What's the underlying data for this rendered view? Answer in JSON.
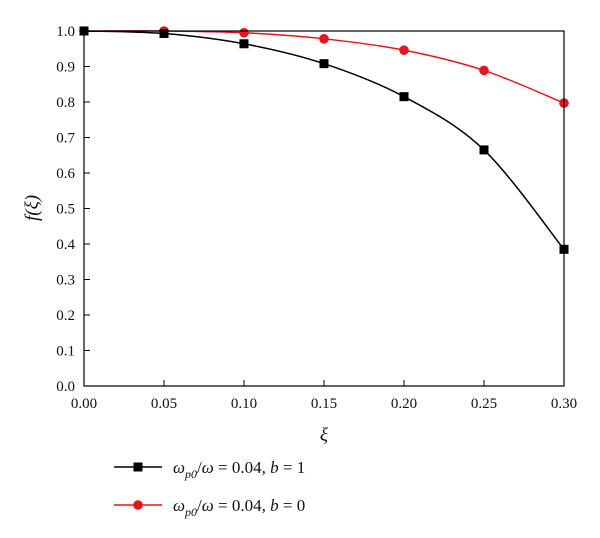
{
  "chart_data": {
    "type": "line",
    "xlabel": "ξ",
    "ylabel": "f(ξ)",
    "xlim": [
      0.0,
      0.3
    ],
    "ylim": [
      0.0,
      1.0
    ],
    "x_ticks": [
      "0.00",
      "0.05",
      "0.10",
      "0.15",
      "0.20",
      "0.25",
      "0.30"
    ],
    "y_ticks": [
      "0.0",
      "0.1",
      "0.2",
      "0.3",
      "0.4",
      "0.5",
      "0.6",
      "0.7",
      "0.8",
      "0.9",
      "1.0"
    ],
    "x": [
      0.0,
      0.05,
      0.1,
      0.15,
      0.2,
      0.25,
      0.3
    ],
    "grid": false,
    "legend_position": "bottom-left",
    "series": [
      {
        "name": "ω_p0/ω = 0.04, b = 1",
        "legend": {
          "sym": "ω",
          "sub": "p0",
          "mid": "/",
          "sym2": "ω",
          "eq": " = 0.04, ",
          "bvar": "b",
          "tail": " = 1"
        },
        "marker": "square",
        "color": "#000000",
        "values": [
          1.0,
          0.993,
          0.964,
          0.908,
          0.815,
          0.665,
          0.385
        ]
      },
      {
        "name": "ω_p0/ω = 0.04, b = 0",
        "legend": {
          "sym": "ω",
          "sub": "p0",
          "mid": "/",
          "sym2": "ω",
          "eq": " = 0.04, ",
          "bvar": "b",
          "tail": " = 0"
        },
        "marker": "circle",
        "color": "#e8141b",
        "values": [
          1.0,
          1.0,
          0.995,
          0.978,
          0.946,
          0.889,
          0.797
        ]
      }
    ]
  }
}
